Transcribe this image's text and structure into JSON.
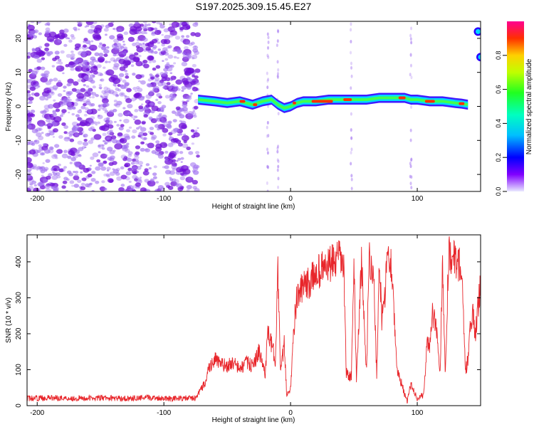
{
  "figure_title": "S197.2025.309.15.45.E27",
  "colors": {
    "spectro_low": "#a070f0",
    "spectro_high": "#7010d8",
    "snr_line": "#e8252a",
    "axis": "#000000"
  },
  "chart_data": [
    {
      "type": "heatmap",
      "title": "S197.2025.309.15.45.E27",
      "xlabel": "Height of straight line (km)",
      "ylabel": "Frequency (Hz)",
      "xlim": [
        -208,
        150
      ],
      "ylim": [
        -25,
        25
      ],
      "xticks": [
        -200,
        -100,
        0,
        100
      ],
      "yticks": [
        -20,
        -10,
        0,
        10,
        20
      ],
      "noise_region_x": [
        -208,
        -73
      ],
      "signal_track": {
        "x": [
          -73,
          -60,
          -50,
          -40,
          -30,
          -22,
          -15,
          -10,
          -5,
          0,
          5,
          10,
          20,
          30,
          40,
          50,
          60,
          70,
          80,
          90,
          95,
          100,
          110,
          120,
          130,
          135,
          140
        ],
        "freq_hz": [
          2,
          1.5,
          1,
          1.5,
          0.5,
          1.5,
          2,
          0.5,
          -0.5,
          0,
          1,
          1.5,
          1.5,
          2,
          2,
          2,
          2,
          2.5,
          2.5,
          2.5,
          2,
          2,
          1.5,
          1.5,
          1,
          0.8,
          0.5
        ]
      },
      "colorbar": {
        "label": "Normalized spectral amplitude",
        "range": [
          0.0,
          1.0
        ],
        "ticks": [
          "0.0",
          "0.2",
          "0.4",
          "0.6",
          "0.8"
        ]
      }
    },
    {
      "type": "line",
      "title": "",
      "xlabel": "Height of straight line (km)",
      "ylabel": "SNR (10 * v/v)",
      "xlim": [
        -208,
        150
      ],
      "ylim": [
        0,
        475
      ],
      "xticks": [
        -200,
        -100,
        0,
        100
      ],
      "yticks": [
        0,
        100,
        200,
        300,
        400
      ],
      "series": [
        {
          "name": "SNR",
          "x": [
            -208,
            -190,
            -170,
            -150,
            -130,
            -110,
            -90,
            -75,
            -68,
            -65,
            -60,
            -55,
            -50,
            -45,
            -40,
            -35,
            -30,
            -25,
            -20,
            -18,
            -15,
            -12,
            -10,
            -8,
            -5,
            -3,
            0,
            3,
            5,
            10,
            15,
            20,
            25,
            30,
            35,
            40,
            42,
            44,
            48,
            50,
            52,
            56,
            60,
            62,
            64,
            66,
            68,
            70,
            72,
            74,
            76,
            80,
            84,
            86,
            88,
            90,
            92,
            95,
            100,
            105,
            108,
            110,
            112,
            115,
            118,
            120,
            122,
            125,
            128,
            130,
            132,
            135,
            138,
            140,
            142,
            144,
            146,
            150
          ],
          "values": [
            20,
            22,
            20,
            21,
            20,
            22,
            20,
            21,
            60,
            100,
            130,
            115,
            110,
            120,
            100,
            120,
            110,
            150,
            90,
            200,
            170,
            130,
            380,
            90,
            170,
            30,
            50,
            230,
            300,
            330,
            340,
            370,
            380,
            390,
            400,
            410,
            380,
            90,
            80,
            390,
            80,
            400,
            90,
            420,
            390,
            320,
            80,
            410,
            240,
            280,
            420,
            390,
            90,
            80,
            60,
            30,
            10,
            60,
            20,
            30,
            180,
            170,
            250,
            220,
            90,
            410,
            90,
            440,
            400,
            410,
            400,
            380,
            90,
            130,
            220,
            250,
            200,
            350
          ]
        }
      ]
    }
  ]
}
